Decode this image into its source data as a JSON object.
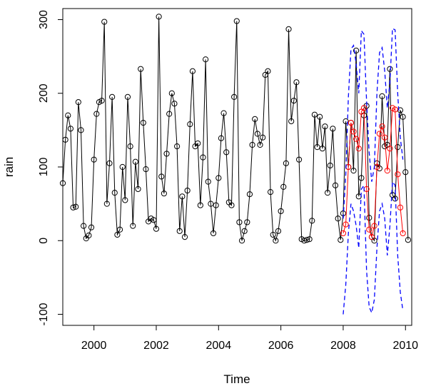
{
  "chart_data": {
    "type": "line",
    "title": "",
    "xlabel": "Time",
    "ylabel": "rain",
    "xlim": [
      1999.0,
      2010.2
    ],
    "ylim": [
      -115,
      315
    ],
    "x_ticks": [
      2000,
      2002,
      2004,
      2006,
      2008,
      2010
    ],
    "x_tick_labels": [
      "2000",
      "2002",
      "2004",
      "2006",
      "2008",
      "2010"
    ],
    "y_ticks": [
      -100,
      0,
      100,
      200,
      300
    ],
    "y_tick_labels": [
      "-100",
      "0",
      "100",
      "200",
      "300"
    ],
    "grid": false,
    "legend": "none",
    "series": [
      {
        "role": "observed",
        "style": "solid line with open circles",
        "color": "#000000",
        "x_start": 1999.0,
        "x_step": 0.08333,
        "values": [
          78,
          137,
          170,
          152,
          45,
          46,
          188,
          150,
          20,
          3,
          7,
          18,
          110,
          172,
          188,
          190,
          297,
          50,
          105,
          195,
          65,
          8,
          15,
          100,
          55,
          195,
          128,
          20,
          107,
          70,
          233,
          160,
          97,
          26,
          30,
          28,
          16,
          304,
          87,
          64,
          118,
          172,
          200,
          186,
          128,
          13,
          60,
          5,
          68,
          158,
          230,
          128,
          132,
          48,
          113,
          246,
          80,
          50,
          10,
          48,
          85,
          139,
          173,
          120,
          52,
          48,
          195,
          298,
          25,
          0,
          13,
          25,
          63,
          130,
          165,
          145,
          130,
          140,
          225,
          230,
          66,
          8,
          0,
          13,
          40,
          73,
          105,
          287,
          162,
          190,
          215,
          110,
          2,
          0,
          1,
          2,
          27,
          171,
          127,
          168,
          125,
          155,
          65,
          102,
          152,
          75,
          30,
          1,
          37,
          162,
          100,
          160,
          95,
          258,
          60,
          85,
          170,
          183,
          31,
          5,
          0,
          105,
          98,
          196,
          128,
          130,
          233,
          62,
          57,
          127,
          177,
          168,
          93,
          1
        ]
      },
      {
        "role": "forecast",
        "style": "solid line with open circles",
        "color": "#ff0000",
        "x_start": 2008.0,
        "x_step": 0.08333,
        "values": [
          10,
          22,
          100,
          160,
          148,
          138,
          125,
          175,
          180,
          70,
          15,
          5,
          20,
          100,
          145,
          155,
          140,
          95,
          125,
          180,
          178,
          90,
          45,
          10
        ]
      },
      {
        "role": "upper interval",
        "style": "dashed line",
        "color": "#0000ff",
        "x_start": 2008.0,
        "x_step": 0.08333,
        "values": [
          30,
          90,
          195,
          260,
          265,
          240,
          200,
          285,
          280,
          190,
          120,
          80,
          100,
          200,
          255,
          262,
          230,
          180,
          215,
          288,
          286,
          200,
          140,
          110
        ]
      },
      {
        "role": "lower interval",
        "style": "dashed line",
        "color": "#0000ff",
        "x_start": 2008.0,
        "x_step": 0.08333,
        "values": [
          -100,
          -60,
          10,
          50,
          40,
          20,
          -10,
          70,
          75,
          -40,
          -90,
          -98,
          -80,
          -10,
          40,
          50,
          30,
          -20,
          20,
          80,
          75,
          -20,
          -70,
          -95
        ]
      }
    ]
  }
}
